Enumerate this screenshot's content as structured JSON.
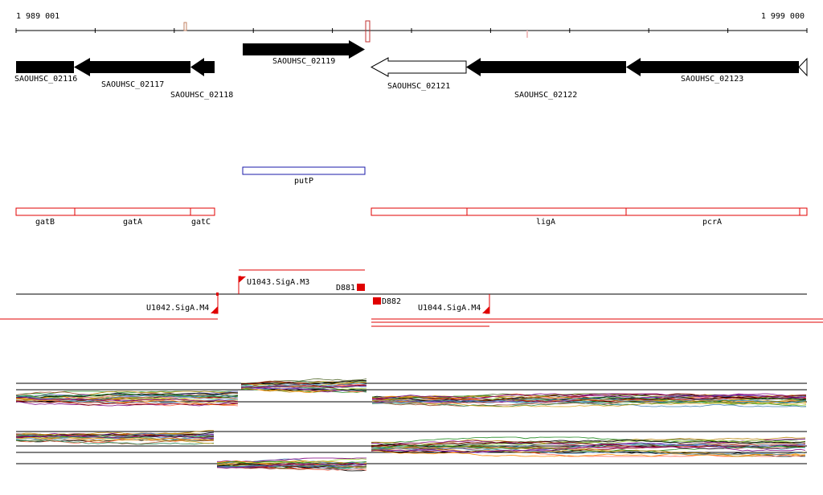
{
  "coords": {
    "start": "1 989 001",
    "end": "1 999 000"
  },
  "genes": [
    {
      "id": "SAOUHSC_02116",
      "fill": "#000000"
    },
    {
      "id": "SAOUHSC_02117",
      "fill": "#000000"
    },
    {
      "id": "SAOUHSC_02118",
      "fill": "#000000"
    },
    {
      "id": "SAOUHSC_02119",
      "fill": "#000000"
    },
    {
      "id": "SAOUHSC_02121",
      "fill": "#ffffff"
    },
    {
      "id": "SAOUHSC_02122",
      "fill": "#000000"
    },
    {
      "id": "SAOUHSC_02123",
      "fill": "#000000"
    }
  ],
  "blue_feature": {
    "label": "putP",
    "color": "#1a1aa8"
  },
  "red_features": [
    {
      "label": "gatB"
    },
    {
      "label": "gatA"
    },
    {
      "label": "gatC"
    },
    {
      "label": ""
    },
    {
      "label": "ligA"
    },
    {
      "label": "pcrA"
    },
    {
      "label": ""
    }
  ],
  "regulatory": {
    "u1042": "U1042.SigA.M4",
    "u1043": "U1043.SigA.M3",
    "u1044": "U1044.SigA.M4",
    "d881": "D881",
    "d882": "D882"
  },
  "colors": {
    "red": "#e00000",
    "lines": [
      "#000000",
      "#8b0000",
      "#228b22",
      "#b8860b",
      "#4682b4",
      "#800080",
      "#ff6347",
      "#556b2f",
      "#9acd32",
      "#a0522d",
      "#87ceeb",
      "#ff8c00",
      "#2e8b57",
      "#cd5c5c",
      "#6a5acd",
      "#daa520"
    ]
  }
}
